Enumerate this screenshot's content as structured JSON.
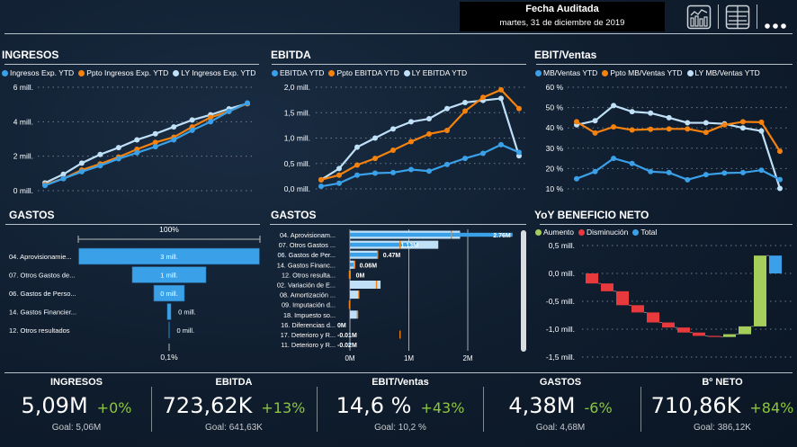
{
  "header": {
    "date_title": "Fecha Auditada",
    "date_value": "martes, 31 de diciembre de 2019",
    "icons": [
      "chart-view-icon",
      "table-view-icon",
      "more-options-icon"
    ]
  },
  "colors": {
    "actual": "#3aa0e8",
    "budget": "#f5820f",
    "last_year": "#bfe0f7",
    "increase": "#a6ce5a",
    "decrease": "#e8393c",
    "total": "#3aa0e8",
    "kpi_positive": "#8cc63f"
  },
  "panels": {
    "ingresos": {
      "title": "INGRESOS"
    },
    "ebitda": {
      "title": "EBITDA"
    },
    "ebit_ventas": {
      "title": "EBIT/Ventas"
    },
    "gastos_funnel": {
      "title": "GASTOS"
    },
    "gastos_bar": {
      "title": "GASTOS"
    },
    "yoy": {
      "title": "YoY BENEFICIO NETO"
    }
  },
  "chart_data": [
    {
      "id": "ingresos",
      "type": "line",
      "title": "INGRESOS",
      "legend": [
        "Ingresos Exp. YTD",
        "Ppto Ingresos Exp. YTD",
        "LY Ingresos Exp. YTD"
      ],
      "yticks": [
        "0 mill.",
        "2 mill.",
        "4 mill.",
        "6 mill."
      ],
      "ylim": [
        0,
        6
      ],
      "x": [
        1,
        2,
        3,
        4,
        5,
        6,
        7,
        8,
        9,
        10,
        11,
        12
      ],
      "series": [
        {
          "name": "Ingresos Exp. YTD",
          "values": [
            0.3,
            0.7,
            1.1,
            1.45,
            1.85,
            2.2,
            2.55,
            2.95,
            3.5,
            4.0,
            4.6,
            5.09
          ]
        },
        {
          "name": "Ppto Ingresos Exp. YTD",
          "values": [
            0.35,
            0.7,
            1.2,
            1.55,
            1.95,
            2.4,
            2.8,
            3.1,
            3.7,
            4.25,
            4.6,
            5.06
          ]
        },
        {
          "name": "LY Ingresos Exp. YTD",
          "values": [
            0.45,
            0.95,
            1.6,
            2.1,
            2.5,
            2.95,
            3.3,
            3.7,
            4.1,
            4.4,
            4.75,
            5.05
          ]
        }
      ]
    },
    {
      "id": "ebitda",
      "type": "line",
      "title": "EBITDA",
      "legend": [
        "EBITDA YTD",
        "Ppto EBITDA YTD",
        "LY EBITDA YTD"
      ],
      "yticks": [
        "0,0 mill.",
        "0,5 mill.",
        "1,0 mill.",
        "1,5 mill.",
        "2,0 mill."
      ],
      "ylim": [
        0,
        2
      ],
      "x": [
        1,
        2,
        3,
        4,
        5,
        6,
        7,
        8,
        9,
        10,
        11,
        12
      ],
      "series": [
        {
          "name": "EBITDA YTD",
          "values": [
            0.05,
            0.11,
            0.27,
            0.31,
            0.32,
            0.38,
            0.35,
            0.48,
            0.6,
            0.7,
            0.87,
            0.72
          ]
        },
        {
          "name": "Ppto EBITDA YTD",
          "values": [
            0.18,
            0.27,
            0.47,
            0.6,
            0.76,
            0.93,
            1.08,
            1.15,
            1.53,
            1.8,
            1.95,
            1.58
          ]
        },
        {
          "name": "LY EBITDA YTD",
          "values": [
            0.18,
            0.4,
            0.82,
            1.0,
            1.18,
            1.32,
            1.38,
            1.58,
            1.7,
            1.74,
            1.78,
            0.65
          ]
        }
      ]
    },
    {
      "id": "ebit_ventas",
      "type": "line",
      "title": "EBIT/Ventas",
      "legend": [
        "MB/Ventas YTD",
        "Ppto MB/Ventas YTD",
        "LY MB/Ventas YTD"
      ],
      "yticks": [
        "10 %",
        "20 %",
        "30 %",
        "40 %",
        "50 %",
        "60 %"
      ],
      "ylim": [
        10,
        60
      ],
      "x": [
        1,
        2,
        3,
        4,
        5,
        6,
        7,
        8,
        9,
        10,
        11,
        12
      ],
      "series": [
        {
          "name": "MB/Ventas YTD",
          "values": [
            15,
            18.5,
            25,
            22.5,
            18.5,
            18,
            14.5,
            17,
            17.8,
            18,
            19.2,
            14.6
          ]
        },
        {
          "name": "Ppto MB/Ventas YTD",
          "values": [
            43,
            37.5,
            40.5,
            39,
            39.3,
            39.5,
            39.5,
            37.8,
            41.5,
            43,
            42.8,
            28.5
          ]
        },
        {
          "name": "LY MB/Ventas YTD",
          "values": [
            41.5,
            43.5,
            51,
            48,
            47.3,
            45,
            42.5,
            42.5,
            42,
            40,
            38.5,
            10.2
          ]
        }
      ]
    },
    {
      "id": "gastos_funnel",
      "type": "bar",
      "title": "GASTOS",
      "top_label": "100%",
      "bottom_label": "0,1%",
      "categories": [
        "04. Aprovisionamie...",
        "07. Otros Gastos de...",
        "06. Gastos de Perso...",
        "14. Gastos Financier...",
        "12. Otros resultados"
      ],
      "values": [
        2.76,
        1.13,
        0.47,
        0.06,
        0.002
      ],
      "data_labels": [
        "3 mill.",
        "1 mill.",
        "0 mill.",
        "0 mill.",
        "0 mill."
      ]
    },
    {
      "id": "gastos_bar",
      "type": "bar",
      "title": "GASTOS",
      "categories": [
        "04. Aprovisionam...",
        "07. Otros Gastos ...",
        "06. Gastos de Per...",
        "14. Gastos Financ...",
        "12. Otros resulta...",
        "02. Variación de E...",
        "08. Amortización ...",
        "09. Imputación d...",
        "18. Impuesto so...",
        "16. Diferencias d...",
        "17. Deterioro y R...",
        "11. Deterioro y R..."
      ],
      "xticks": [
        "0M",
        "1M",
        "2M"
      ],
      "xlim": [
        0,
        2.8
      ],
      "series": [
        {
          "name": "Actual",
          "values": [
            2.76,
            1.13,
            0.47,
            0.06,
            0.0,
            0,
            0,
            0,
            0,
            0.0,
            -0.01,
            -0.02
          ]
        },
        {
          "name": "LY",
          "values": [
            1.87,
            1.5,
            0.47,
            0.07,
            0.01,
            0.52,
            0.15,
            -0.01,
            0.12,
            0,
            0,
            0
          ]
        },
        {
          "name": "Target",
          "values": [
            1.72,
            0.85,
            0.47,
            0.08,
            -0.01,
            0.45,
            0.15,
            -0.01,
            0.13,
            0,
            0.85,
            0
          ]
        }
      ],
      "data_labels": [
        "2.76M",
        "1.13M",
        "0.47M",
        "0.06M",
        "0M",
        "",
        "",
        "",
        "",
        "0M",
        "-0.01M",
        "-0.02M"
      ]
    },
    {
      "id": "yoy",
      "type": "bar",
      "subtype": "waterfall",
      "title": "YoY BENEFICIO NETO",
      "legend": [
        "Aumento",
        "Disminución",
        "Total"
      ],
      "yticks": [
        "-1,5 mill.",
        "-1,0 mill.",
        "-0,5 mill.",
        "0,0 mill.",
        "0,5 mill."
      ],
      "ylim": [
        -1.5,
        0.5
      ],
      "steps": [
        -0.18,
        -0.14,
        -0.25,
        -0.13,
        -0.18,
        -0.09,
        -0.09,
        -0.06,
        -0.02,
        0.05,
        0.14,
        1.27
      ],
      "total": 0.32
    }
  ],
  "kpis": [
    {
      "label": "INGRESOS",
      "value": "5,09M",
      "delta": "+0%",
      "goal": "Goal: 5,06M"
    },
    {
      "label": "EBITDA",
      "value": "723,62K",
      "delta": "+13%",
      "goal": "Goal: 641,63K"
    },
    {
      "label": "EBIT/Ventas",
      "value": "14,6 %",
      "delta": "+43%",
      "goal": "Goal: 10,2 %"
    },
    {
      "label": "GASTOS",
      "value": "4,38M",
      "delta": "-6%",
      "goal": "Goal: 4,68M"
    },
    {
      "label": "Bº NETO",
      "value": "710,86K",
      "delta": "+84%",
      "goal": "Goal: 386,12K"
    }
  ]
}
